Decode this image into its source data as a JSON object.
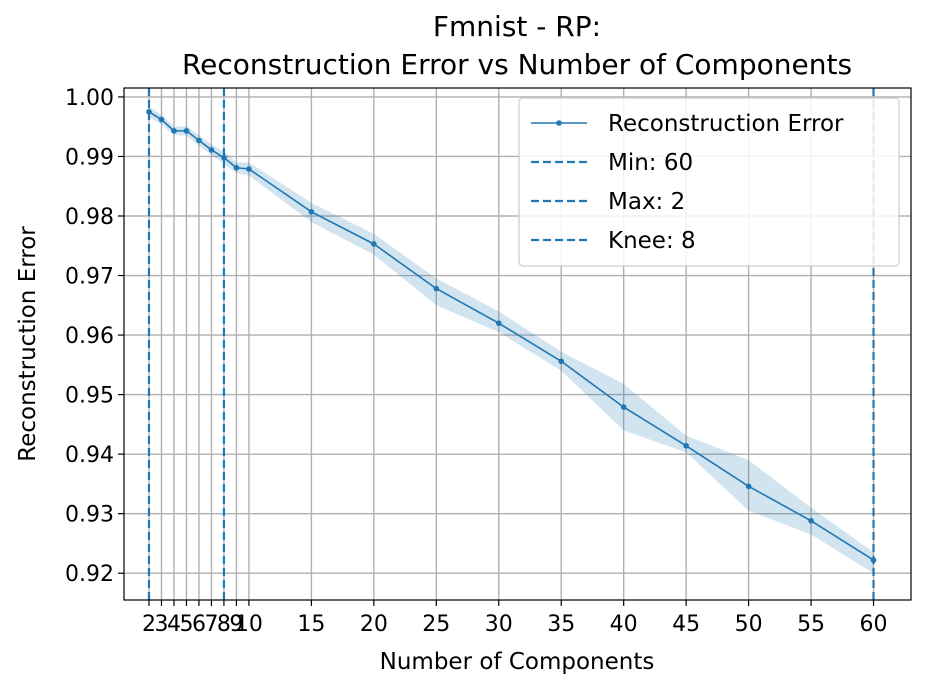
{
  "chart_data": {
    "type": "line",
    "title_line1": "Fmnist - RP:",
    "title_line2": "Reconstruction Error vs Number of Components",
    "xlabel": "Number of Components",
    "ylabel": "Reconstruction Error",
    "xlim": [
      0,
      63
    ],
    "ylim": [
      0.9155,
      1.0015
    ],
    "x_ticks": [
      2,
      3,
      4,
      5,
      6,
      7,
      8,
      9,
      10,
      15,
      20,
      25,
      30,
      35,
      40,
      45,
      50,
      55,
      60
    ],
    "y_ticks": [
      0.92,
      0.93,
      0.94,
      0.95,
      0.96,
      0.97,
      0.98,
      0.99,
      1.0
    ],
    "y_tick_labels": [
      "0.92",
      "0.93",
      "0.94",
      "0.95",
      "0.96",
      "0.97",
      "0.98",
      "0.99",
      "1.00"
    ],
    "grid": true,
    "legend_position": "top-right",
    "color": "#1f77b4",
    "series": [
      {
        "name": "Reconstruction Error",
        "x": [
          2,
          3,
          4,
          5,
          6,
          7,
          8,
          9,
          10,
          15,
          20,
          25,
          30,
          35,
          40,
          45,
          50,
          55,
          60
        ],
        "values": [
          0.9975,
          0.9962,
          0.9943,
          0.9943,
          0.9927,
          0.9911,
          0.9898,
          0.9881,
          0.9879,
          0.9807,
          0.9753,
          0.9678,
          0.962,
          0.9556,
          0.9479,
          0.9414,
          0.9346,
          0.9288,
          0.9222
        ],
        "band_lower": [
          0.9966,
          0.9954,
          0.9936,
          0.9935,
          0.9918,
          0.9902,
          0.9888,
          0.9872,
          0.9868,
          0.979,
          0.9735,
          0.965,
          0.9605,
          0.954,
          0.944,
          0.9403,
          0.9305,
          0.9265,
          0.92
        ],
        "band_upper": [
          0.9984,
          0.997,
          0.995,
          0.9951,
          0.9936,
          0.992,
          0.9908,
          0.989,
          0.989,
          0.9822,
          0.977,
          0.9695,
          0.964,
          0.9572,
          0.9518,
          0.9431,
          0.939,
          0.931,
          0.9235
        ]
      }
    ],
    "vlines": [
      {
        "label": "Min: 60",
        "x": 60
      },
      {
        "label": "Max: 2",
        "x": 2
      },
      {
        "label": "Knee: 8",
        "x": 8
      }
    ]
  }
}
